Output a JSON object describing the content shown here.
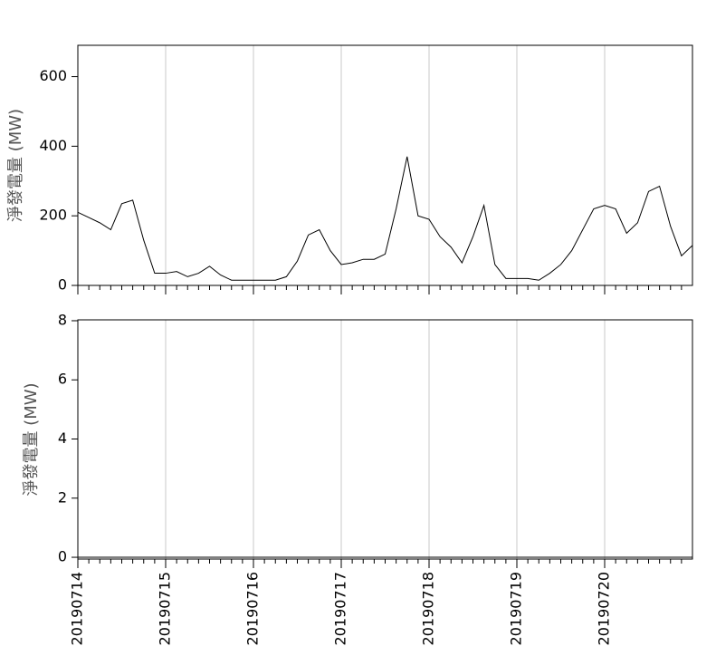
{
  "chart_data": [
    {
      "type": "line",
      "ylabel": "淨發電量 (MW)",
      "x": [
        0,
        0.125,
        0.25,
        0.375,
        0.5,
        0.625,
        0.75,
        0.875,
        1,
        1.125,
        1.25,
        1.375,
        1.5,
        1.625,
        1.75,
        1.875,
        2,
        2.125,
        2.25,
        2.375,
        2.5,
        2.625,
        2.75,
        2.875,
        3,
        3.125,
        3.25,
        3.375,
        3.5,
        3.625,
        3.75,
        3.875,
        4,
        4.125,
        4.25,
        4.375,
        4.5,
        4.625,
        4.75,
        4.875,
        5,
        5.125,
        5.25,
        5.375,
        5.5,
        5.625,
        5.75,
        5.875,
        6,
        6.125,
        6.25,
        6.375,
        6.5,
        6.625,
        6.75,
        6.875,
        7
      ],
      "series": [
        {
          "color": "#000000",
          "values": [
            210,
            195,
            180,
            160,
            235,
            245,
            130,
            35,
            35,
            40,
            25,
            35,
            55,
            30,
            15,
            15,
            15,
            15,
            15,
            25,
            70,
            145,
            160,
            100,
            60,
            65,
            75,
            75,
            90,
            220,
            370,
            200,
            190,
            140,
            110,
            65,
            140,
            230,
            60,
            20,
            20,
            20,
            15,
            35,
            60,
            100,
            160,
            220,
            230,
            220,
            150,
            180,
            270,
            285,
            170,
            85,
            115
          ]
        }
      ],
      "xlim": [
        0,
        7
      ],
      "ylim": [
        0,
        690
      ],
      "xticks": [
        {
          "value": 0,
          "label": "20190714"
        },
        {
          "value": 1,
          "label": "20190715"
        },
        {
          "value": 2,
          "label": "20190716"
        },
        {
          "value": 3,
          "label": "20190717"
        },
        {
          "value": 4,
          "label": "20190718"
        },
        {
          "value": 5,
          "label": "20190719"
        },
        {
          "value": 6,
          "label": "20190720"
        }
      ],
      "xminorticks": [
        0.125,
        0.25,
        0.375,
        0.5,
        0.625,
        0.75,
        0.875,
        1.125,
        1.25,
        1.375,
        1.5,
        1.625,
        1.75,
        1.875,
        2.125,
        2.25,
        2.375,
        2.5,
        2.625,
        2.75,
        2.875,
        3.125,
        3.25,
        3.375,
        3.5,
        3.625,
        3.75,
        3.875,
        4.125,
        4.25,
        4.375,
        4.5,
        4.625,
        4.75,
        4.875,
        5.125,
        5.25,
        5.375,
        5.5,
        5.625,
        5.75,
        5.875,
        6.125,
        6.25,
        6.375,
        6.5,
        6.625,
        6.75,
        6.875
      ],
      "yticks": [
        0,
        200,
        400,
        600
      ],
      "grid": true
    },
    {
      "type": "line",
      "ylabel": "淨發電量 (MW)",
      "x": [
        0,
        0.125,
        0.25,
        0.375,
        0.5,
        0.625,
        0.75,
        0.875,
        1,
        1.125,
        1.25,
        1.375,
        1.5,
        1.625,
        1.75,
        1.875,
        2,
        2.125,
        2.25,
        2.375,
        2.5,
        2.625,
        2.75,
        2.875,
        3,
        3.125,
        3.25,
        3.375,
        3.5,
        3.625,
        3.75,
        3.875,
        4,
        4.125,
        4.25,
        4.375,
        4.5,
        4.625,
        4.75,
        4.875,
        5,
        5.125,
        5.25,
        5.375,
        5.5,
        5.625,
        5.75,
        5.875,
        6,
        6.125,
        6.25,
        6.375,
        6.5,
        6.625,
        6.75,
        6.875,
        7
      ],
      "series": [
        {
          "color": "#000000",
          "values": [
            0,
            0,
            0,
            0,
            0,
            0,
            0,
            0,
            0,
            0,
            0,
            0,
            0,
            0,
            0,
            0,
            0,
            0,
            0,
            0,
            0,
            0,
            0,
            0,
            0,
            0,
            0,
            0,
            0,
            0,
            0,
            0,
            0,
            0,
            0,
            0,
            0,
            0,
            0,
            0,
            0,
            0,
            0,
            0,
            0,
            0,
            0,
            0,
            0,
            0,
            0,
            0,
            0,
            0,
            0,
            0,
            0
          ]
        }
      ],
      "xlim": [
        0,
        7
      ],
      "ylim": [
        -0.06,
        8.03
      ],
      "xticks": [
        {
          "value": 0,
          "label": "20190714"
        },
        {
          "value": 1,
          "label": "20190715"
        },
        {
          "value": 2,
          "label": "20190716"
        },
        {
          "value": 3,
          "label": "20190717"
        },
        {
          "value": 4,
          "label": "20190718"
        },
        {
          "value": 5,
          "label": "20190719"
        },
        {
          "value": 6,
          "label": "20190720"
        }
      ],
      "xminorticks": [
        0.125,
        0.25,
        0.375,
        0.5,
        0.625,
        0.75,
        0.875,
        1.125,
        1.25,
        1.375,
        1.5,
        1.625,
        1.75,
        1.875,
        2.125,
        2.25,
        2.375,
        2.5,
        2.625,
        2.75,
        2.875,
        3.125,
        3.25,
        3.375,
        3.5,
        3.625,
        3.75,
        3.875,
        4.125,
        4.25,
        4.375,
        4.5,
        4.625,
        4.75,
        4.875,
        5.125,
        5.25,
        5.375,
        5.5,
        5.625,
        5.75,
        5.875,
        6.125,
        6.25,
        6.375,
        6.5,
        6.625,
        6.75,
        6.875
      ],
      "yticks": [
        0,
        2,
        4,
        6,
        8
      ],
      "grid": true,
      "xticklabels": true
    }
  ]
}
